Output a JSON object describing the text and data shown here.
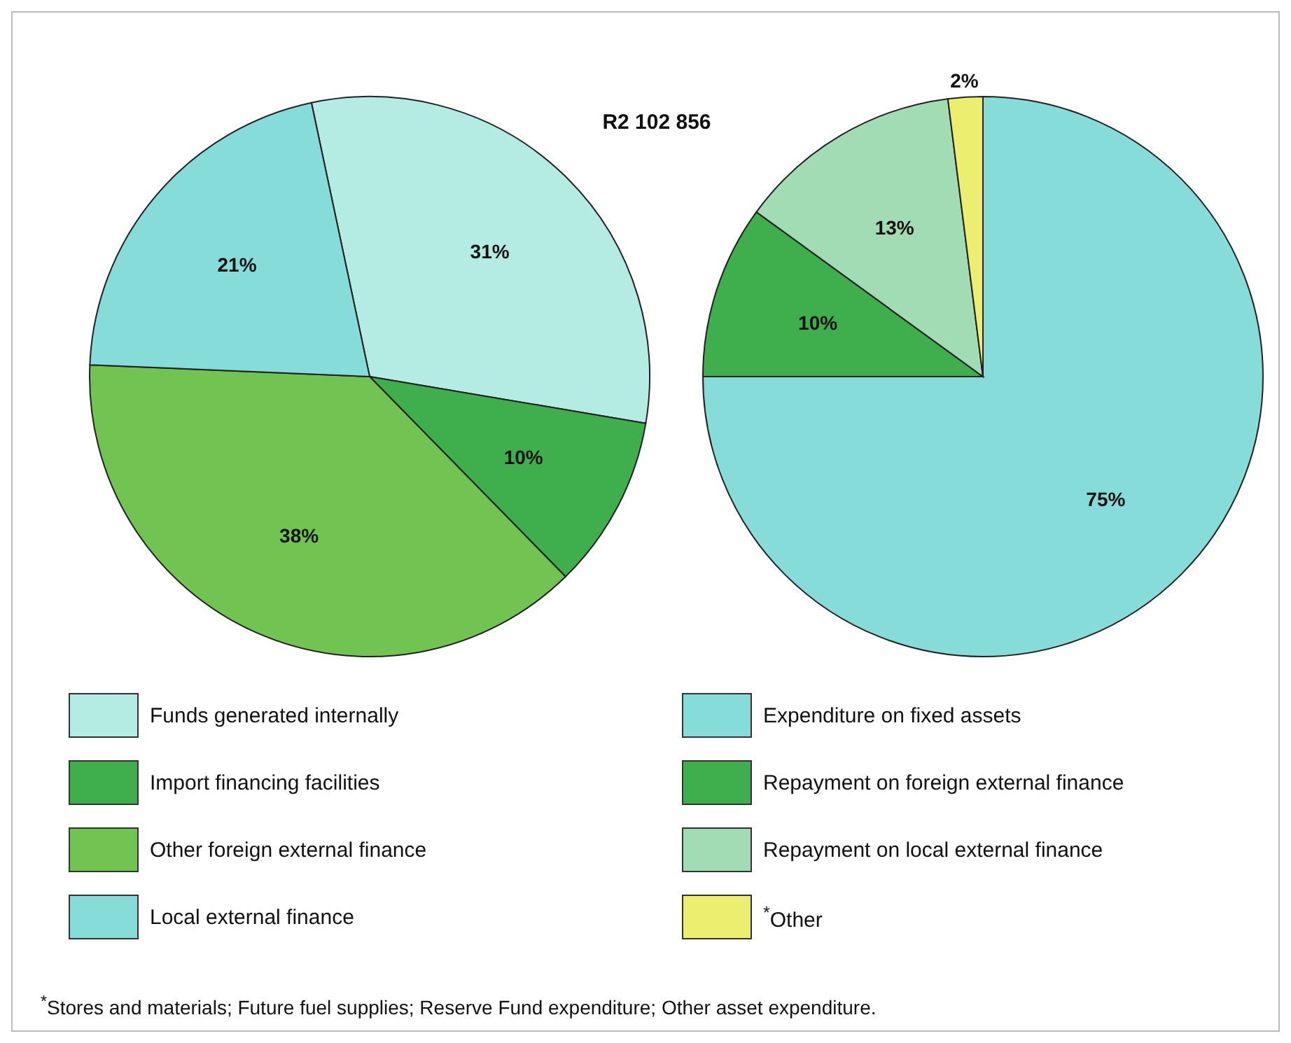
{
  "chart_data": [
    {
      "type": "pie",
      "title": "R2 102 856",
      "categories": [
        "Funds generated internally",
        "Import financing facilities",
        "Other foreign external finance",
        "Local external finance"
      ],
      "values": [
        31,
        10,
        38,
        21
      ],
      "value_labels": [
        "31%",
        "10%",
        "38%",
        "21%"
      ],
      "colors": [
        "#b4ece4",
        "#3fae4c",
        "#72c452",
        "#86dcd8"
      ],
      "legend": "bottom"
    },
    {
      "type": "pie",
      "categories": [
        "Expenditure on fixed assets",
        "Repayment on foreign external finance",
        "Repayment on local external finance",
        "$^{*}$Other"
      ],
      "values": [
        75,
        10,
        13,
        2
      ],
      "value_labels": [
        "75%",
        "10%",
        "13%",
        "2%"
      ],
      "colors": [
        "#86dcd8",
        "#3fae4c",
        "#a2dcb4",
        "#ecee70"
      ],
      "legend": "bottom",
      "annotations": [
        "$^{*}$Stores and materials; Future fuel supplies; Reserve Fund expenditure; Other asset expenditure."
      ]
    }
  ]
}
